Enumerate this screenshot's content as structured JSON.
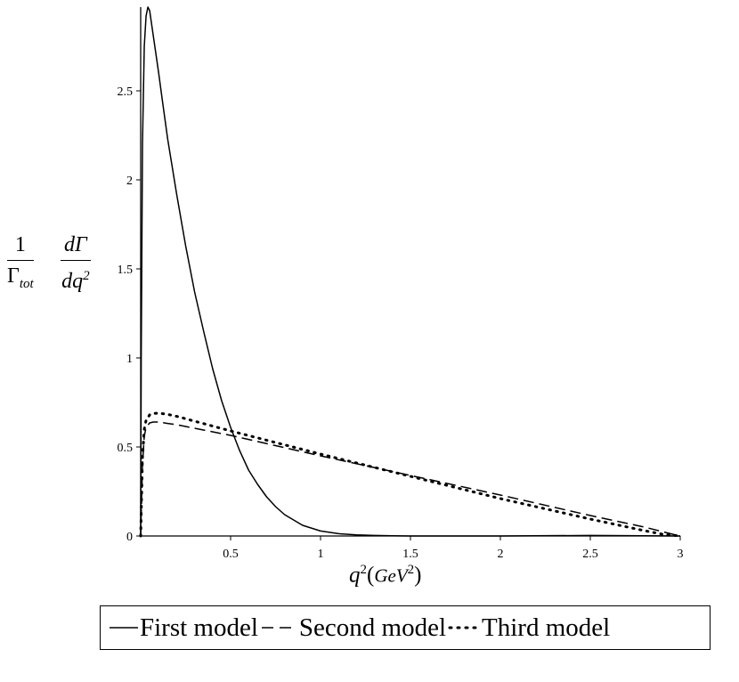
{
  "chart_data": {
    "type": "line",
    "title": "",
    "ylabel": {
      "frac1_num": "1",
      "frac1_den_main": "Γ",
      "frac1_den_sub": "tot",
      "frac2_num": "dΓ",
      "frac2_den_main": "dq",
      "frac2_den_sup": "2"
    },
    "xlabel": {
      "var": "q",
      "var_sup": "2",
      "open": "(",
      "unit": "GeV",
      "unit_sup": "2",
      "close": ")"
    },
    "xlim": [
      0,
      3
    ],
    "ylim": [
      0,
      2.97
    ],
    "x_ticks": [
      "0.5",
      "1",
      "1.5",
      "2",
      "2.5",
      "3"
    ],
    "x_tick_values": [
      0.5,
      1,
      1.5,
      2,
      2.5,
      3
    ],
    "y_ticks": [
      "0",
      "0.5",
      "1",
      "1.5",
      "2",
      "2.5"
    ],
    "y_tick_values": [
      0,
      0.5,
      1,
      1.5,
      2,
      2.5
    ],
    "series": [
      {
        "name": "First model",
        "style": "solid",
        "x": [
          0.0,
          0.003,
          0.01,
          0.02,
          0.03,
          0.04,
          0.05,
          0.06,
          0.08,
          0.1,
          0.12,
          0.15,
          0.2,
          0.25,
          0.3,
          0.35,
          0.4,
          0.45,
          0.5,
          0.55,
          0.6,
          0.65,
          0.7,
          0.75,
          0.8,
          0.9,
          1.0,
          1.1,
          1.2,
          1.3,
          1.4,
          1.5,
          1.75,
          2.0,
          2.5,
          3.0
        ],
        "y": [
          0.0,
          1.0,
          2.2,
          2.75,
          2.92,
          2.97,
          2.95,
          2.88,
          2.74,
          2.6,
          2.45,
          2.23,
          1.92,
          1.63,
          1.37,
          1.15,
          0.94,
          0.76,
          0.61,
          0.48,
          0.37,
          0.29,
          0.22,
          0.165,
          0.12,
          0.06,
          0.028,
          0.013,
          0.006,
          0.003,
          0.001,
          0.0,
          0.0,
          0.0,
          0.003,
          0.0
        ]
      },
      {
        "name": "Second model",
        "style": "dashed",
        "x": [
          0.0,
          0.005,
          0.01,
          0.02,
          0.03,
          0.05,
          0.07,
          0.1,
          0.15,
          0.2,
          0.5,
          1.0,
          1.5,
          2.0,
          2.5,
          2.8,
          2.95,
          3.0
        ],
        "y": [
          0.0,
          0.2,
          0.4,
          0.56,
          0.61,
          0.635,
          0.64,
          0.64,
          0.632,
          0.625,
          0.565,
          0.45,
          0.34,
          0.23,
          0.115,
          0.05,
          0.012,
          0.0
        ]
      },
      {
        "name": "Third model",
        "style": "dotted",
        "x": [
          0.0,
          0.005,
          0.01,
          0.02,
          0.03,
          0.05,
          0.07,
          0.1,
          0.15,
          0.2,
          0.5,
          1.0,
          1.5,
          2.0,
          2.5,
          2.8,
          2.9,
          3.0
        ],
        "y": [
          0.0,
          0.22,
          0.44,
          0.6,
          0.65,
          0.68,
          0.688,
          0.69,
          0.683,
          0.672,
          0.59,
          0.46,
          0.335,
          0.21,
          0.095,
          0.03,
          0.01,
          0.0
        ]
      }
    ],
    "legend_placement": "bottom",
    "grid": false
  }
}
